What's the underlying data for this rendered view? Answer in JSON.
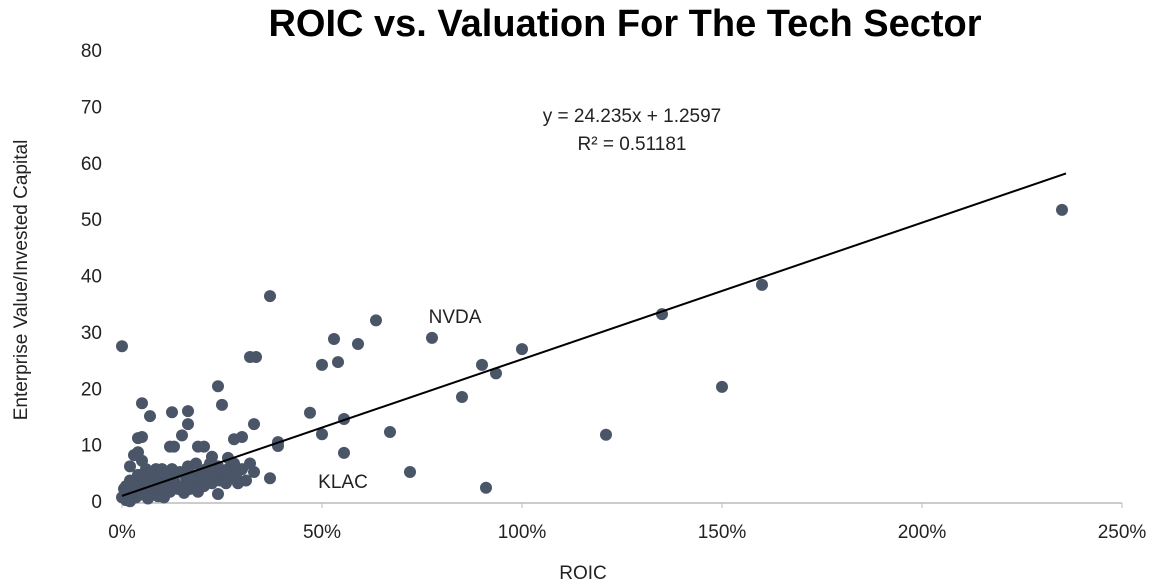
{
  "chart_data": {
    "type": "scatter",
    "title": "ROIC vs. Valuation For The Tech Sector",
    "xlabel": "ROIC",
    "ylabel": "Enterprise Value/Invested Capital",
    "annotations": [
      "y = 24.235x + 1.2597",
      "R² = 0.51181",
      "NVDA",
      "KLAC"
    ],
    "trendline": {
      "slope": 24.235,
      "intercept": 1.2597,
      "x_range": [
        0,
        2.36
      ],
      "color": "#000000"
    },
    "color": "#4a5568",
    "xlim": [
      0,
      2.5
    ],
    "xticks": [
      {
        "value": 0,
        "label": "0%"
      },
      {
        "value": 0.5,
        "label": "50%"
      },
      {
        "value": 1,
        "label": "100%"
      },
      {
        "value": 1.5,
        "label": "150%"
      },
      {
        "value": 2,
        "label": "200%"
      },
      {
        "value": 2.5,
        "label": "250%"
      }
    ],
    "ylim": [
      0,
      80
    ],
    "yticks": [
      0,
      10,
      20,
      30,
      40,
      50,
      60,
      70,
      80
    ],
    "grid": false,
    "x": [
      2.35,
      1.6,
      1.35,
      1.5,
      1.21,
      1.0,
      0.935,
      0.9,
      0.85,
      0.91,
      0.775,
      0.72,
      0.67,
      0.635,
      0.59,
      0.555,
      0.555,
      0.54,
      0.53,
      0.5,
      0.5,
      0.47,
      0.37,
      0.37,
      0.335,
      0.32,
      0.33,
      0.39,
      0.39,
      0.3,
      0.28,
      0.24,
      0.25,
      0,
      0.05,
      0.07,
      0.05,
      0.125,
      0.165,
      0.165,
      0.15,
      0.13,
      0.19,
      0.205,
      0.24,
      0.265,
      0.225,
      0,
      0.005,
      0.01,
      0.01,
      0.015,
      0.02,
      0.02,
      0.03,
      0.03,
      0.035,
      0.04,
      0.04,
      0.045,
      0.05,
      0.05,
      0.055,
      0.06,
      0.06,
      0.065,
      0.07,
      0.075,
      0.08,
      0.085,
      0.09,
      0.095,
      0.1,
      0.1,
      0.105,
      0.11,
      0.115,
      0.12,
      0.125,
      0.13,
      0.14,
      0.145,
      0.15,
      0.155,
      0.16,
      0.165,
      0.17,
      0.175,
      0.18,
      0.185,
      0.19,
      0.195,
      0.2,
      0.205,
      0.21,
      0.215,
      0.22,
      0.225,
      0.23,
      0.24,
      0.245,
      0.25,
      0.26,
      0.265,
      0.27,
      0.28,
      0.285,
      0.29,
      0.3,
      0.31,
      0.32,
      0.33,
      0.04,
      0.03,
      0.07,
      0.12,
      0.02
    ],
    "values": [
      52,
      38.7,
      33.5,
      20.6,
      12.1,
      27.3,
      23,
      24.5,
      18.8,
      2.7,
      29.3,
      5.5,
      12.6,
      32.4,
      28.2,
      14.9,
      8.9,
      25,
      29.1,
      24.5,
      12.2,
      16,
      36.7,
      4.4,
      25.9,
      25.9,
      14,
      10.1,
      10.8,
      11.7,
      11.3,
      20.7,
      17.4,
      27.8,
      17.7,
      15.4,
      11.7,
      16.1,
      16.3,
      14,
      12,
      10,
      10,
      10,
      1.6,
      8,
      8.2,
      1,
      2.5,
      0.5,
      3,
      1.5,
      4,
      6.5,
      2,
      3.5,
      1,
      5,
      9,
      2.5,
      7.5,
      1.5,
      4,
      3,
      6,
      0.8,
      5,
      2,
      3.8,
      6,
      1.2,
      4.5,
      2.8,
      6,
      1,
      5,
      3.5,
      2,
      6,
      4,
      2.5,
      5.5,
      3,
      1.8,
      4.5,
      6.5,
      2.5,
      5,
      3.5,
      7,
      2,
      4,
      5.5,
      3,
      6,
      4.5,
      7,
      3.5,
      5,
      6.5,
      4,
      5.5,
      3.5,
      6,
      4.5,
      7,
      5,
      3.5,
      6,
      4,
      7,
      5.5,
      11.5,
      8.5,
      3,
      10,
      0.3
    ]
  }
}
